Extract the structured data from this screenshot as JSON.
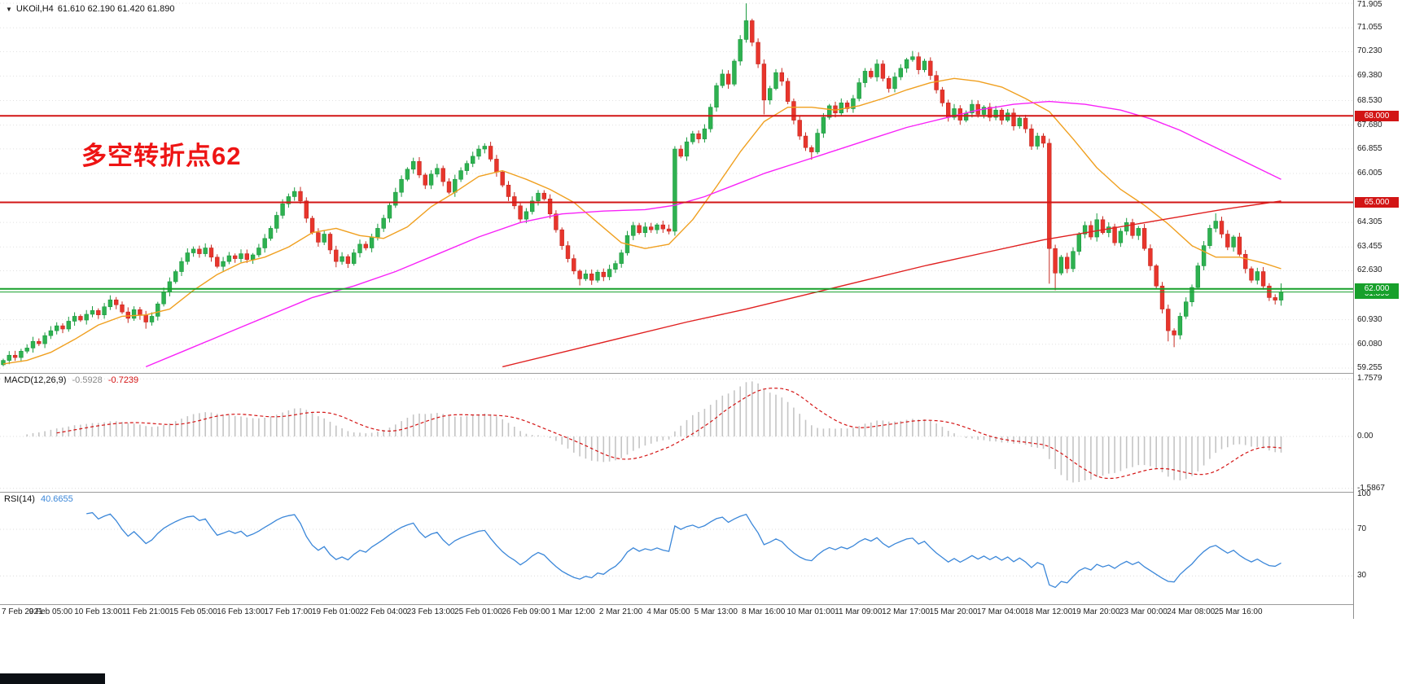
{
  "symbol_bar": {
    "symbol": "UKOil,H4",
    "values": "61.610 62.190 61.420 61.890"
  },
  "annotation": {
    "text": "多空转折点62",
    "color": "#ee1414"
  },
  "chart_data": {
    "type": "candlestick",
    "title": "UKOil H4 candlestick chart with MACD and RSI",
    "timeframe": "H4",
    "current_ohlc": {
      "open": "61.610",
      "high": "62.190",
      "low": "61.420",
      "close": "61.890"
    },
    "price_axis": {
      "min": 59.255,
      "max": 71.905,
      "gridlines": [
        "71.905",
        "71.055",
        "70.230",
        "69.380",
        "68.530",
        "67.680",
        "66.855",
        "66.005",
        "64.305",
        "63.455",
        "62.630",
        "60.930",
        "60.080",
        "59.255"
      ]
    },
    "hlines": [
      {
        "label": "68.000",
        "value": 68.0,
        "color": "#d21515"
      },
      {
        "label": "65.000",
        "value": 65.0,
        "color": "#d21515"
      },
      {
        "label": "62.000",
        "value": 62.0,
        "color": "#17a02b"
      }
    ],
    "current_price": {
      "label": "61.890",
      "value": 61.89,
      "color": "#17a02b"
    },
    "open_first": 59.37,
    "closes": [
      59.52,
      59.7,
      59.62,
      59.84,
      59.95,
      60.18,
      60.1,
      60.38,
      60.55,
      60.72,
      60.61,
      60.88,
      61.05,
      60.92,
      61.12,
      61.25,
      61.1,
      61.38,
      61.62,
      61.45,
      61.2,
      60.98,
      61.28,
      61.08,
      60.85,
      61.05,
      61.48,
      61.9,
      62.25,
      62.6,
      62.95,
      63.25,
      63.38,
      63.22,
      63.42,
      63.1,
      62.78,
      62.95,
      63.15,
      63.05,
      63.22,
      63.02,
      63.18,
      63.42,
      63.75,
      64.1,
      64.55,
      64.95,
      65.2,
      65.38,
      65.05,
      64.45,
      63.95,
      63.62,
      63.9,
      63.35,
      62.95,
      63.12,
      62.88,
      63.25,
      63.55,
      63.42,
      63.8,
      64.1,
      64.45,
      64.9,
      65.35,
      65.8,
      66.15,
      66.42,
      65.95,
      65.6,
      65.98,
      66.18,
      65.72,
      65.35,
      65.8,
      66.1,
      66.35,
      66.6,
      66.85,
      66.95,
      66.5,
      66.05,
      65.6,
      65.2,
      64.88,
      64.42,
      64.68,
      65.05,
      65.32,
      65.12,
      64.6,
      64.05,
      63.5,
      63.05,
      62.62,
      62.35,
      62.52,
      62.3,
      62.58,
      62.42,
      62.68,
      62.88,
      63.25,
      63.85,
      64.2,
      63.95,
      64.15,
      64.05,
      64.22,
      64.08,
      64.0,
      66.85,
      66.6,
      67.1,
      67.38,
      67.2,
      67.55,
      68.3,
      69.05,
      69.45,
      69.1,
      69.9,
      70.65,
      71.3,
      70.55,
      69.8,
      68.55,
      68.95,
      69.5,
      69.2,
      68.5,
      67.85,
      67.3,
      66.9,
      66.75,
      67.4,
      67.95,
      68.35,
      68.1,
      68.45,
      68.25,
      68.6,
      69.15,
      69.55,
      69.35,
      69.8,
      69.3,
      68.95,
      69.35,
      69.65,
      69.95,
      70.05,
      69.6,
      69.9,
      69.4,
      68.9,
      68.45,
      67.95,
      68.25,
      67.85,
      68.1,
      68.4,
      68.05,
      68.3,
      67.95,
      68.2,
      67.85,
      68.1,
      67.65,
      67.92,
      67.55,
      66.95,
      67.3,
      67.05,
      63.4,
      62.55,
      63.1,
      62.7,
      63.3,
      63.9,
      64.2,
      63.8,
      64.4,
      63.95,
      64.15,
      63.6,
      64.0,
      64.3,
      63.85,
      64.1,
      63.4,
      62.8,
      62.1,
      61.3,
      60.55,
      60.4,
      61.05,
      61.55,
      62.05,
      62.8,
      63.5,
      64.1,
      64.35,
      63.9,
      63.45,
      63.8,
      63.2,
      62.7,
      62.3,
      62.6,
      62.1,
      61.7,
      61.61,
      61.89
    ],
    "key_highs": {
      "49": 65.52,
      "69": 66.55,
      "81": 67.05,
      "113": 66.95,
      "125": 71.9,
      "153": 70.25,
      "184": 64.62,
      "204": 64.62,
      "215": 62.19
    },
    "key_lows": {
      "0": 59.32,
      "24": 60.62,
      "56": 62.75,
      "97": 62.12,
      "128": 68.05,
      "136": 66.48,
      "176": 62.18,
      "177": 61.95,
      "196": 60.18,
      "197": 59.98,
      "215": 61.42
    },
    "colors": {
      "bull_fill": "#2eb150",
      "bull_stroke": "#1c9a40",
      "bear_fill": "#e8352c",
      "bear_stroke": "#c62a22",
      "grid": "#dddddd",
      "hist": "#c4c4c4",
      "signal": "#d41414",
      "rsi_line": "#3b87d9"
    },
    "moving_averages": [
      {
        "name": "ma-fast",
        "color": "#f0a020",
        "points": [
          [
            0,
            59.4
          ],
          [
            4,
            59.52
          ],
          [
            8,
            59.8
          ],
          [
            12,
            60.25
          ],
          [
            16,
            60.75
          ],
          [
            20,
            61.05
          ],
          [
            24,
            61.1
          ],
          [
            28,
            61.3
          ],
          [
            32,
            61.95
          ],
          [
            36,
            62.5
          ],
          [
            40,
            62.9
          ],
          [
            44,
            63.1
          ],
          [
            48,
            63.45
          ],
          [
            52,
            63.95
          ],
          [
            56,
            64.1
          ],
          [
            60,
            63.85
          ],
          [
            64,
            63.75
          ],
          [
            68,
            64.15
          ],
          [
            72,
            64.85
          ],
          [
            76,
            65.35
          ],
          [
            80,
            65.9
          ],
          [
            84,
            66.1
          ],
          [
            88,
            65.8
          ],
          [
            92,
            65.45
          ],
          [
            96,
            65.0
          ],
          [
            100,
            64.3
          ],
          [
            104,
            63.6
          ],
          [
            108,
            63.4
          ],
          [
            112,
            63.55
          ],
          [
            116,
            64.4
          ],
          [
            120,
            65.55
          ],
          [
            124,
            66.75
          ],
          [
            128,
            67.8
          ],
          [
            132,
            68.3
          ],
          [
            136,
            68.3
          ],
          [
            140,
            68.2
          ],
          [
            144,
            68.35
          ],
          [
            148,
            68.6
          ],
          [
            152,
            68.9
          ],
          [
            156,
            69.15
          ],
          [
            160,
            69.3
          ],
          [
            164,
            69.2
          ],
          [
            168,
            69.0
          ],
          [
            172,
            68.6
          ],
          [
            176,
            68.15
          ],
          [
            180,
            67.2
          ],
          [
            184,
            66.2
          ],
          [
            188,
            65.45
          ],
          [
            192,
            64.9
          ],
          [
            196,
            64.25
          ],
          [
            200,
            63.5
          ],
          [
            204,
            63.1
          ],
          [
            208,
            63.1
          ],
          [
            212,
            62.9
          ],
          [
            215,
            62.7
          ]
        ]
      },
      {
        "name": "ma-mid",
        "color": "#f822f8",
        "points": [
          [
            24,
            59.3
          ],
          [
            31,
            59.9
          ],
          [
            38,
            60.5
          ],
          [
            45,
            61.1
          ],
          [
            52,
            61.7
          ],
          [
            59,
            62.1
          ],
          [
            66,
            62.6
          ],
          [
            73,
            63.2
          ],
          [
            80,
            63.8
          ],
          [
            87,
            64.3
          ],
          [
            94,
            64.6
          ],
          [
            101,
            64.7
          ],
          [
            108,
            64.75
          ],
          [
            113,
            64.9
          ],
          [
            118,
            65.2
          ],
          [
            123,
            65.6
          ],
          [
            128,
            66.0
          ],
          [
            134,
            66.4
          ],
          [
            140,
            66.8
          ],
          [
            146,
            67.2
          ],
          [
            152,
            67.6
          ],
          [
            158,
            67.9
          ],
          [
            164,
            68.2
          ],
          [
            170,
            68.4
          ],
          [
            176,
            68.5
          ],
          [
            182,
            68.4
          ],
          [
            188,
            68.2
          ],
          [
            193,
            67.9
          ],
          [
            198,
            67.5
          ],
          [
            203,
            67.0
          ],
          [
            208,
            66.5
          ],
          [
            212,
            66.1
          ],
          [
            215,
            65.8
          ]
        ]
      },
      {
        "name": "ma-slow",
        "color": "#e02020",
        "points": [
          [
            84,
            59.3
          ],
          [
            95,
            59.85
          ],
          [
            105,
            60.35
          ],
          [
            115,
            60.85
          ],
          [
            125,
            61.3
          ],
          [
            135,
            61.8
          ],
          [
            145,
            62.3
          ],
          [
            155,
            62.8
          ],
          [
            165,
            63.25
          ],
          [
            175,
            63.7
          ],
          [
            185,
            64.05
          ],
          [
            195,
            64.4
          ],
          [
            205,
            64.75
          ],
          [
            215,
            65.05
          ]
        ]
      }
    ],
    "macd": {
      "label": "MACD(12,26,9)",
      "main_value": "-0.5928",
      "signal_value": "-0.7239",
      "fast": 12,
      "slow": 26,
      "signal": 9,
      "axis": [
        "1.7579",
        "0.00",
        "-1.5867"
      ]
    },
    "rsi": {
      "label": "RSI(14)",
      "value": "40.6655",
      "period": 14,
      "axis": [
        "100",
        "70",
        "30"
      ],
      "levels": [
        70,
        30
      ]
    },
    "x_labels": [
      "7 Feb 2021",
      "9 Feb 05:00",
      "10 Feb 13:00",
      "11 Feb 21:00",
      "15 Feb 05:00",
      "16 Feb 13:00",
      "17 Feb 17:00",
      "19 Feb 01:00",
      "22 Feb 04:00",
      "23 Feb 13:00",
      "25 Feb 01:00",
      "26 Feb 09:00",
      "1 Mar 12:00",
      "2 Mar 21:00",
      "4 Mar 05:00",
      "5 Mar 13:00",
      "8 Mar 16:00",
      "10 Mar 01:00",
      "11 Mar 09:00",
      "12 Mar 17:00",
      "15 Mar 20:00",
      "17 Mar 04:00",
      "18 Mar 12:00",
      "19 Mar 20:00",
      "23 Mar 00:00",
      "24 Mar 08:00",
      "25 Mar 16:00"
    ]
  }
}
